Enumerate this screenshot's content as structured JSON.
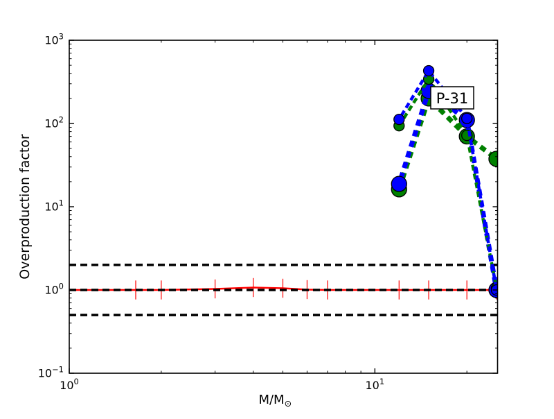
{
  "chart_data": {
    "type": "line",
    "title": "",
    "xlabel": "M/M",
    "xlabel_subscript": "⊙",
    "ylabel": "Overproduction factor",
    "x_scale": "log",
    "y_scale": "log",
    "xlim": [
      1,
      25.2
    ],
    "ylim": [
      0.1,
      1000
    ],
    "grid": false,
    "legend": "none",
    "annotation": {
      "text": "P-31"
    },
    "x_major_ticks": [
      {
        "value": 1,
        "base": "10",
        "exp": "0"
      },
      {
        "value": 10,
        "base": "10",
        "exp": "1"
      }
    ],
    "y_major_ticks": [
      {
        "value": 1000,
        "base": "10",
        "exp": "3"
      },
      {
        "value": 100,
        "base": "10",
        "exp": "2"
      },
      {
        "value": 10,
        "base": "10",
        "exp": "1"
      },
      {
        "value": 1,
        "base": "10",
        "exp": "0"
      },
      {
        "value": 0.1,
        "base": "10",
        "exp": "−1"
      }
    ],
    "reference_lines": [
      {
        "y": 2.0,
        "color": "#000000",
        "style": "dashed"
      },
      {
        "y": 1.0,
        "color": "#000000",
        "style": "dashed"
      },
      {
        "y": 0.5,
        "color": "#000000",
        "style": "dashed"
      }
    ],
    "series": [
      {
        "name": "low-mass-models-red",
        "color": "#ff0000",
        "line": "solid",
        "line_width": 2.5,
        "marker": "none",
        "yerr_factor": 1.3,
        "layer": "below",
        "x": [
          1,
          1.65,
          2,
          3,
          4,
          5,
          6,
          7,
          12,
          15,
          20,
          25
        ],
        "y": [
          1.0,
          1.0,
          1.0,
          1.03,
          1.07,
          1.05,
          1.01,
          1.0,
          1.0,
          1.0,
          1.0,
          1.0
        ]
      },
      {
        "name": "massive-green-thick",
        "color": "#008000",
        "line": "dashed",
        "line_width": 7,
        "dash": [
          9,
          7
        ],
        "dash_offset": 0,
        "marker": "circle",
        "marker_radius": 11,
        "layer": "above",
        "x": [
          12,
          15,
          20,
          25
        ],
        "y": [
          16.2,
          200,
          70,
          37.6
        ]
      },
      {
        "name": "massive-blue-thick",
        "color": "#0000ff",
        "line": "dashed",
        "line_width": 7,
        "dash": [
          9,
          7
        ],
        "dash_offset": 8,
        "marker": "circle",
        "marker_radius": 11,
        "layer": "above",
        "x": [
          12,
          15,
          20,
          25
        ],
        "y": [
          18.8,
          247,
          110,
          1.0
        ]
      },
      {
        "name": "massive-green-thin",
        "color": "#008000",
        "line": "dashed",
        "line_width": 4.5,
        "dash": [
          8,
          5
        ],
        "dash_offset": 0,
        "marker": "circle",
        "marker_radius": 7.5,
        "layer": "above",
        "x": [
          12,
          15,
          20,
          25
        ],
        "y": [
          94,
          341,
          72,
          1.05
        ]
      },
      {
        "name": "massive-blue-thin",
        "color": "#0000ff",
        "line": "dashed",
        "line_width": 4.5,
        "dash": [
          8,
          5
        ],
        "dash_offset": 6.5,
        "marker": "circle",
        "marker_radius": 7.5,
        "layer": "above",
        "x": [
          12,
          15,
          20,
          25
        ],
        "y": [
          112,
          430,
          115,
          1.0
        ]
      }
    ]
  }
}
